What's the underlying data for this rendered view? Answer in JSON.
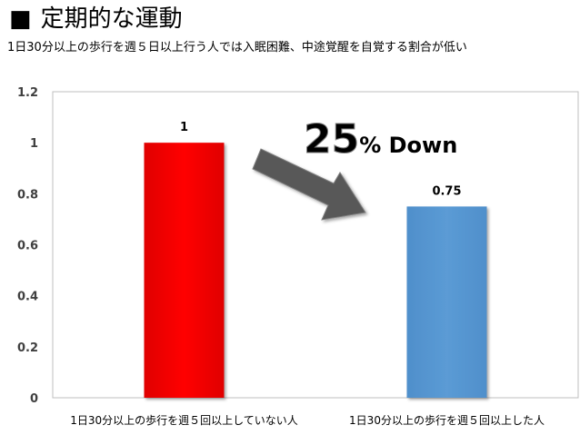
{
  "slide": {
    "bullet": "■",
    "title": "定期的な運動",
    "subtitle": "1日30分以上の歩行を週５日以上行う人では入眠困難、中途覚醒を自覚する割合が低い"
  },
  "chart_data": {
    "type": "bar",
    "categories": [
      "1日30分以上の歩行を週５回以上していない人",
      "1日30分以上の歩行を週５回以上した人"
    ],
    "values": [
      1,
      0.75
    ],
    "value_labels": [
      "1",
      "0.75"
    ],
    "colors": [
      "#ff0000",
      "#5b9bd5"
    ],
    "ylim": [
      0,
      1.2
    ],
    "yticks": [
      0,
      0.2,
      0.4,
      0.6,
      0.8,
      1,
      1.2
    ],
    "ytick_labels": [
      "0",
      "0.2",
      "0.4",
      "0.6",
      "0.8",
      "1",
      "1.2"
    ],
    "grid": false,
    "legend": "none",
    "annotation": {
      "number": "25",
      "text": "% Down",
      "arrow_color": "#595959"
    }
  }
}
